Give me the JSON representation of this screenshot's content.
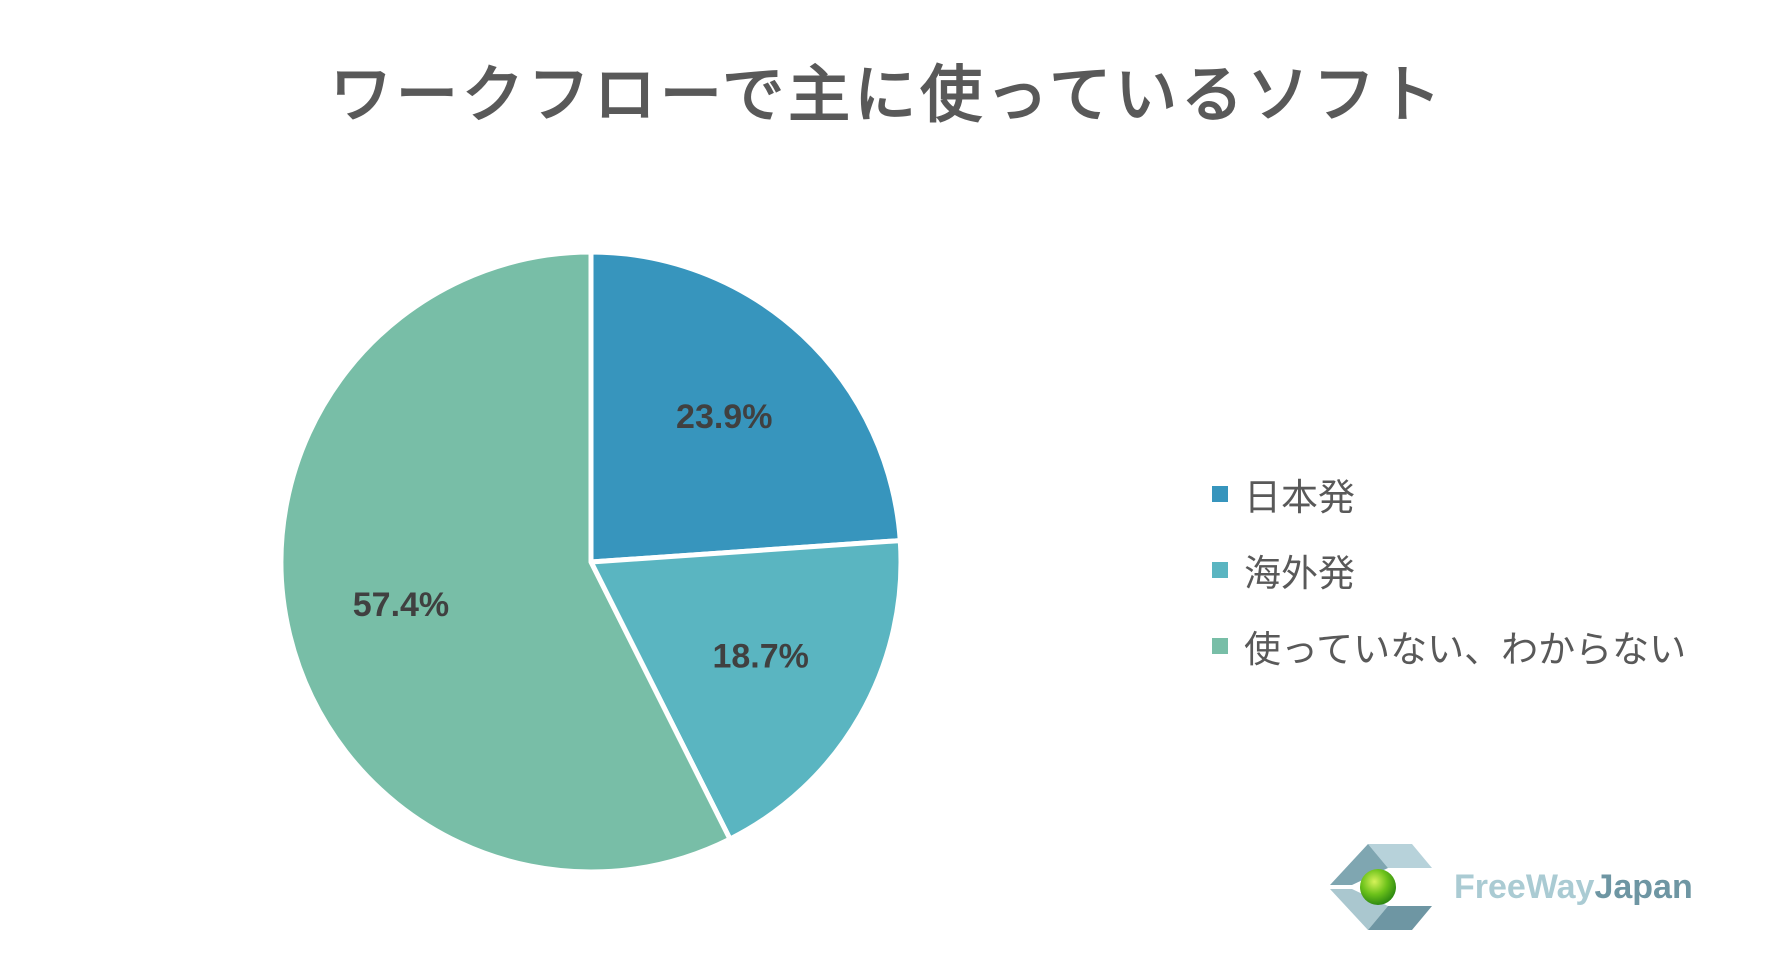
{
  "chart_data": {
    "type": "pie",
    "title": "ワークフローで主に使っているソフト",
    "slices": [
      {
        "label": "日本発",
        "value": 23.9,
        "value_label": "23.9%",
        "color": "#3795bd"
      },
      {
        "label": "海外発",
        "value": 18.7,
        "value_label": "18.7%",
        "color": "#5ab5c1"
      },
      {
        "label": "使っていない、わからない",
        "value": 57.4,
        "value_label": "57.4%",
        "color": "#78bea7"
      }
    ],
    "legend_position": "right"
  },
  "logo": {
    "name": "freewayjapan-logo-icon",
    "text_part1": "FreeWay",
    "text_part2": "Japan"
  }
}
